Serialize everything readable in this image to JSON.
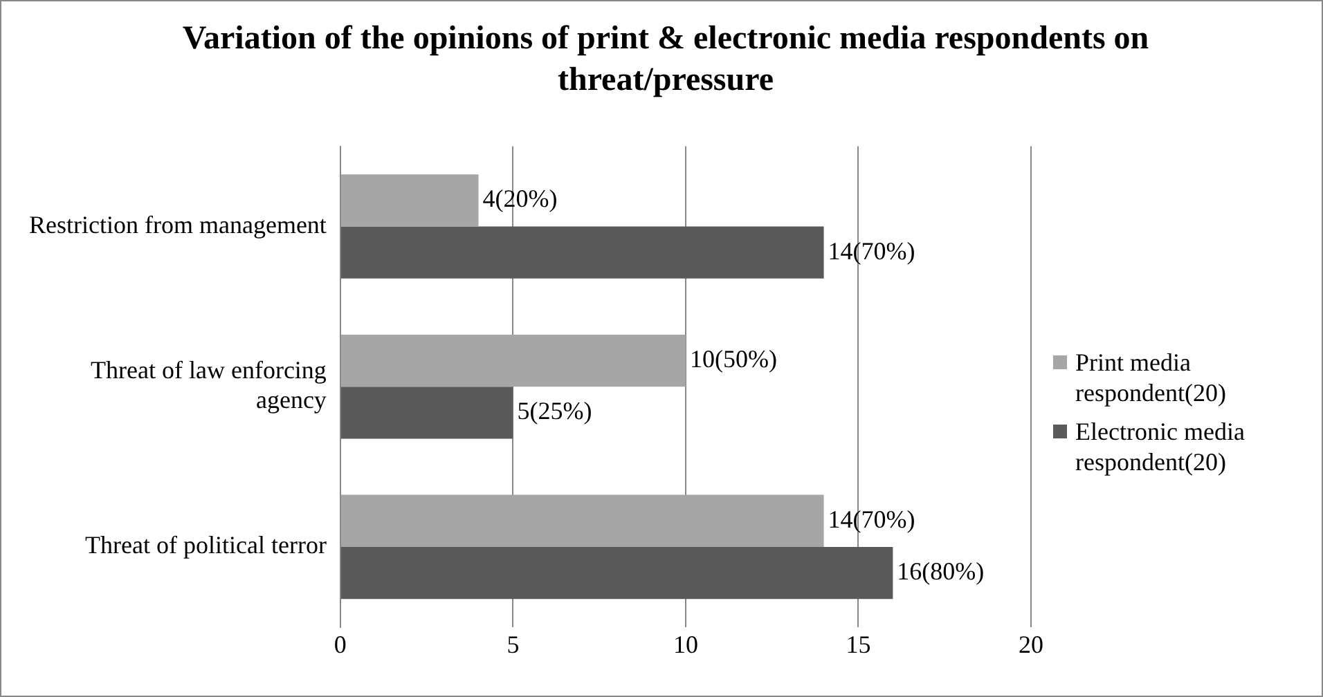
{
  "chart_data": {
    "type": "bar",
    "orientation": "horizontal",
    "title": "Variation of the opinions of print & electronic media respondents on threat/pressure",
    "categories": [
      "Restriction from management",
      "Threat of law enforcing agency",
      "Threat of political terror"
    ],
    "series": [
      {
        "name": "Print media respondent(20)",
        "color": "#a6a6a6",
        "values": [
          4,
          10,
          14
        ],
        "value_labels": [
          "4(20%)",
          "10(50%)",
          "14(70%)"
        ]
      },
      {
        "name": "Electronic media respondent(20)",
        "color": "#595959",
        "values": [
          14,
          5,
          16
        ],
        "value_labels": [
          "14(70%)",
          "5(25%)",
          "16(80%)"
        ]
      }
    ],
    "xlim": [
      0,
      20
    ],
    "xticks": [
      0,
      5,
      10,
      15,
      20
    ],
    "grid": "x",
    "legend": "right"
  }
}
